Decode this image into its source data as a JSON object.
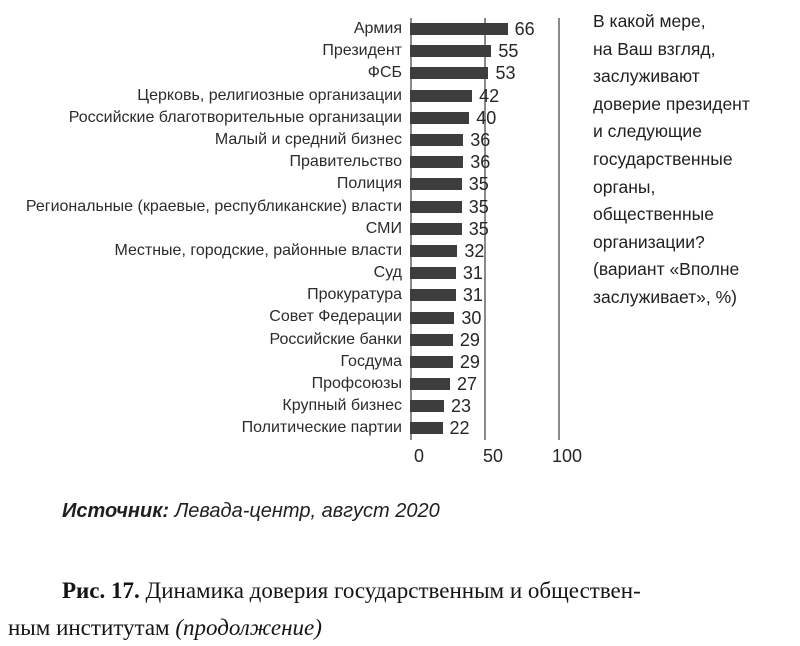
{
  "chart_data": {
    "type": "bar",
    "orientation": "horizontal",
    "title": "",
    "xlabel": "",
    "ylabel": "",
    "categories": [
      "Армия",
      "Президент",
      "ФСБ",
      "Церковь, религиозные организации",
      "Российские благотворительные организации",
      "Малый и средний бизнес",
      "Правительство",
      "Полиция",
      "Региональные (краевые, республиканские) власти",
      "СМИ",
      "Местные, городские, районные власти",
      "Суд",
      "Прокуратура",
      "Совет Федерации",
      "Российские банки",
      "Госдума",
      "Профсоюзы",
      "Крупный бизнес",
      "Политические партии"
    ],
    "values": [
      66,
      55,
      53,
      42,
      40,
      36,
      36,
      35,
      35,
      35,
      32,
      31,
      31,
      30,
      29,
      29,
      27,
      23,
      22
    ],
    "xlim": [
      0,
      100
    ],
    "xticks": [
      0,
      50,
      100
    ],
    "grid": "vertical gridlines at 0, 50, 100",
    "legend": "none",
    "data_labels": "outside end of each bar",
    "bar_color": "#3d3d3d",
    "gridline_color": "#8a8a8a",
    "annotation": "В какой мере,\nна Ваш взгляд,\nзаслуживают\nдоверие президент\nи следующие\nгосударственные\nорганы,\nобщественные\nорганизации?\n(вариант «Вполне\nзаслуживает», %)"
  },
  "source": {
    "label": "Источник:",
    "text": " Левада-центр, август 2020"
  },
  "caption": {
    "figure_label": "Рис. 17.",
    "line1": " Динамика доверия государственным и обществен-",
    "line2": "ным институтам ",
    "continuation": "(продолжение)"
  }
}
